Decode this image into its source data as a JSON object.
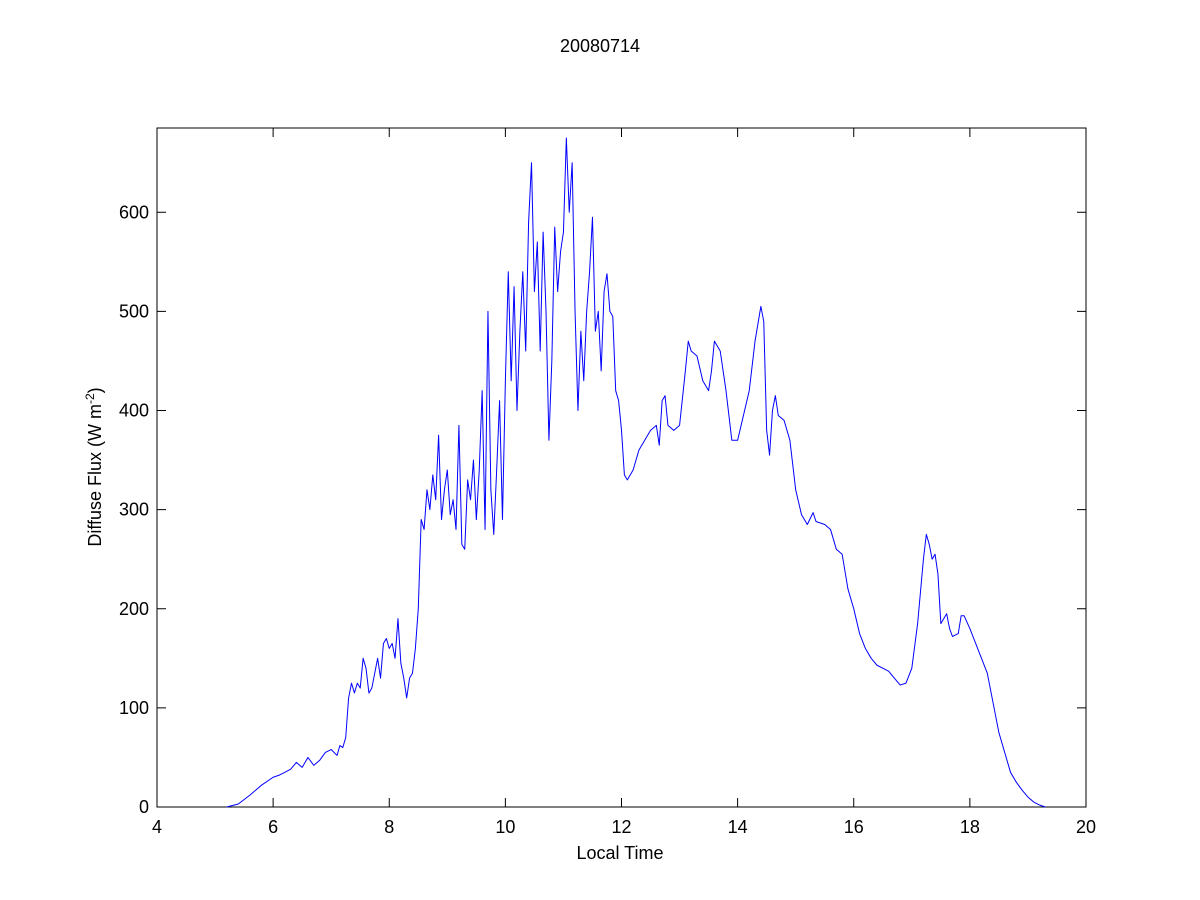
{
  "chart_data": {
    "type": "line",
    "title": "20080714",
    "xlabel": "Local Time",
    "ylabel": [
      "Diffuse Flux (W m",
      "-2",
      ")"
    ],
    "xlim": [
      4,
      20
    ],
    "xticks": [
      4,
      6,
      8,
      10,
      12,
      14,
      16,
      18,
      20
    ],
    "ylim": [
      0,
      685
    ],
    "yticks": [
      0,
      100,
      200,
      300,
      400,
      500,
      600
    ],
    "grid": false,
    "x": [
      5.2,
      5.4,
      5.6,
      5.8,
      6.0,
      6.1,
      6.2,
      6.3,
      6.4,
      6.5,
      6.6,
      6.7,
      6.8,
      6.9,
      7.0,
      7.1,
      7.15,
      7.2,
      7.25,
      7.3,
      7.35,
      7.4,
      7.45,
      7.5,
      7.55,
      7.6,
      7.65,
      7.7,
      7.8,
      7.85,
      7.9,
      7.95,
      8.0,
      8.05,
      8.1,
      8.15,
      8.2,
      8.25,
      8.3,
      8.35,
      8.4,
      8.45,
      8.5,
      8.55,
      8.6,
      8.65,
      8.7,
      8.75,
      8.8,
      8.85,
      8.9,
      8.95,
      9.0,
      9.05,
      9.1,
      9.15,
      9.2,
      9.25,
      9.3,
      9.35,
      9.4,
      9.45,
      9.5,
      9.55,
      9.6,
      9.65,
      9.7,
      9.75,
      9.8,
      9.85,
      9.9,
      9.95,
      10.0,
      10.05,
      10.1,
      10.15,
      10.2,
      10.25,
      10.3,
      10.35,
      10.4,
      10.45,
      10.5,
      10.55,
      10.6,
      10.65,
      10.7,
      10.75,
      10.8,
      10.85,
      10.9,
      10.95,
      11.0,
      11.05,
      11.1,
      11.15,
      11.2,
      11.25,
      11.3,
      11.35,
      11.4,
      11.45,
      11.5,
      11.55,
      11.6,
      11.65,
      11.7,
      11.75,
      11.8,
      11.85,
      11.9,
      11.95,
      12.0,
      12.05,
      12.1,
      12.2,
      12.3,
      12.4,
      12.5,
      12.6,
      12.65,
      12.7,
      12.75,
      12.8,
      12.9,
      13.0,
      13.1,
      13.15,
      13.2,
      13.3,
      13.4,
      13.5,
      13.55,
      13.6,
      13.7,
      13.8,
      13.9,
      14.0,
      14.1,
      14.2,
      14.3,
      14.4,
      14.45,
      14.5,
      14.55,
      14.6,
      14.65,
      14.7,
      14.8,
      14.9,
      15.0,
      15.1,
      15.2,
      15.3,
      15.35,
      15.5,
      15.6,
      15.7,
      15.8,
      15.9,
      16.0,
      16.1,
      16.2,
      16.3,
      16.4,
      16.5,
      16.6,
      16.7,
      16.8,
      16.9,
      17.0,
      17.1,
      17.2,
      17.25,
      17.3,
      17.35,
      17.4,
      17.45,
      17.5,
      17.55,
      17.6,
      17.65,
      17.7,
      17.8,
      17.85,
      17.9,
      18.0,
      18.1,
      18.2,
      18.3,
      18.4,
      18.5,
      18.6,
      18.7,
      18.8,
      18.9,
      19.0,
      19.1,
      19.2,
      19.3
    ],
    "series": [
      {
        "color": "#0000ff",
        "values": [
          0,
          3,
          12,
          22,
          30,
          32,
          35,
          38,
          45,
          40,
          50,
          42,
          47,
          55,
          58,
          52,
          62,
          60,
          70,
          110,
          125,
          115,
          125,
          120,
          150,
          140,
          115,
          120,
          150,
          130,
          165,
          170,
          160,
          165,
          150,
          190,
          145,
          130,
          110,
          130,
          135,
          160,
          200,
          290,
          280,
          320,
          300,
          335,
          310,
          375,
          290,
          320,
          340,
          295,
          310,
          280,
          385,
          265,
          260,
          330,
          310,
          350,
          290,
          340,
          420,
          280,
          500,
          320,
          275,
          340,
          410,
          290,
          430,
          540,
          430,
          525,
          400,
          480,
          540,
          460,
          590,
          650,
          520,
          570,
          460,
          580,
          500,
          370,
          450,
          585,
          520,
          560,
          580,
          675,
          600,
          650,
          500,
          400,
          480,
          430,
          500,
          540,
          595,
          480,
          500,
          440,
          520,
          538,
          500,
          495,
          420,
          410,
          380,
          335,
          330,
          340,
          360,
          370,
          380,
          385,
          365,
          410,
          415,
          385,
          380,
          385,
          440,
          470,
          460,
          455,
          430,
          420,
          440,
          470,
          460,
          420,
          370,
          370,
          395,
          420,
          470,
          505,
          490,
          380,
          355,
          400,
          415,
          395,
          390,
          370,
          320,
          295,
          285,
          297,
          288,
          285,
          280,
          260,
          255,
          220,
          200,
          175,
          160,
          150,
          143,
          140,
          137,
          130,
          123,
          125,
          140,
          185,
          250,
          275,
          265,
          250,
          255,
          235,
          185,
          190,
          195,
          180,
          172,
          175,
          193,
          193,
          180,
          165,
          150,
          135,
          105,
          75,
          55,
          35,
          25,
          17,
          10,
          5,
          2,
          0
        ]
      }
    ]
  }
}
